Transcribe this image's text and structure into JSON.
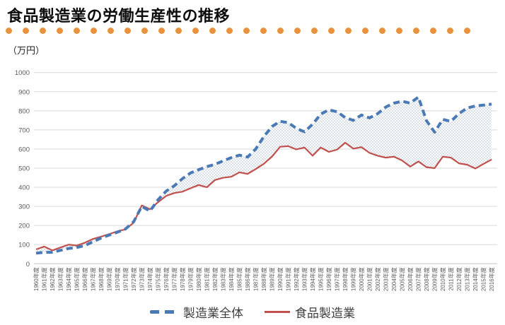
{
  "header": {
    "title": "食品製造業の労働生産性の推移"
  },
  "divider": {
    "color": "#E8923F",
    "dot_count": 28
  },
  "chart_data": {
    "type": "line",
    "title": "食品製造業の労働生産性の推移",
    "unit_label": "（万円）",
    "ylim": [
      0,
      1000
    ],
    "ytick_step": 100,
    "grid": true,
    "legend_position": "bottom",
    "area_fill_between_series": true,
    "x_labels": [
      "1960年度",
      "1961年度",
      "1962年度",
      "1963年度",
      "1964年度",
      "1965年度",
      "1966年度",
      "1967年度",
      "1968年度",
      "1969年度",
      "1970年度",
      "1971年度",
      "1972年度",
      "1973年度",
      "1974年度",
      "1975年度",
      "1976年度",
      "1977年度",
      "1978年度",
      "1979年度",
      "1980年度",
      "1981年度",
      "1982年度",
      "1983年度",
      "1984年度",
      "1985年度",
      "1986年度",
      "1987年度",
      "1988年度",
      "1989年度",
      "1990年度",
      "1991年度",
      "1992年度",
      "1993年度",
      "1994年度",
      "1995年度",
      "1996年度",
      "1997年度",
      "1998年度",
      "1999年度",
      "2000年度",
      "2001年度",
      "2002年度",
      "2003年度",
      "2004年度",
      "2005年度",
      "2006年度",
      "2007年度",
      "2008年度",
      "2009年度",
      "2010年度",
      "2011年度",
      "2012年度",
      "2013年度",
      "2014年度",
      "2015年度",
      "2016年度"
    ],
    "series": [
      {
        "name": "製造業全体",
        "line_style": "dashed",
        "color": "#4A7AB5",
        "values": [
          55,
          60,
          60,
          70,
          80,
          85,
          95,
          115,
          135,
          150,
          165,
          182,
          220,
          300,
          275,
          335,
          380,
          408,
          445,
          475,
          492,
          508,
          520,
          538,
          555,
          568,
          558,
          600,
          665,
          718,
          745,
          738,
          708,
          690,
          730,
          783,
          805,
          795,
          765,
          750,
          778,
          763,
          785,
          820,
          840,
          850,
          840,
          872,
          748,
          688,
          755,
          745,
          785,
          815,
          825,
          830,
          835
        ]
      },
      {
        "name": "食品製造業",
        "line_style": "solid",
        "color": "#C0504D",
        "values": [
          75,
          90,
          70,
          85,
          100,
          95,
          110,
          130,
          142,
          155,
          170,
          180,
          215,
          305,
          285,
          322,
          355,
          370,
          377,
          395,
          412,
          400,
          438,
          450,
          455,
          478,
          470,
          495,
          523,
          560,
          612,
          615,
          598,
          608,
          565,
          608,
          585,
          597,
          633,
          602,
          610,
          580,
          565,
          555,
          560,
          540,
          508,
          535,
          505,
          500,
          560,
          555,
          525,
          518,
          498,
          522,
          545
        ]
      }
    ]
  },
  "legend": {
    "items": [
      {
        "label": "製造業全体",
        "color": "#4A7AB5",
        "style": "dashed"
      },
      {
        "label": "食品製造業",
        "color": "#C0504D",
        "style": "solid"
      }
    ]
  }
}
